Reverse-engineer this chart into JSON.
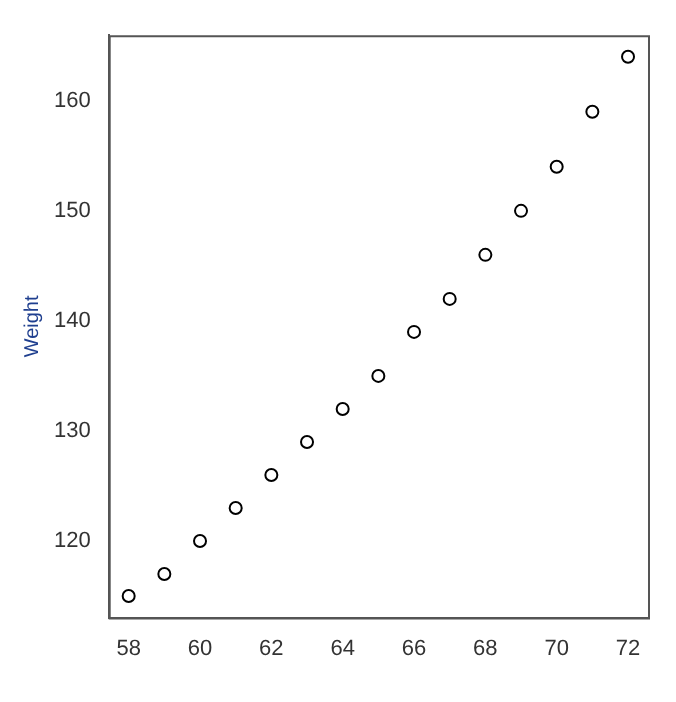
{
  "chart_data": {
    "type": "scatter",
    "ylabel": "Weight",
    "x": [
      58,
      59,
      60,
      61,
      62,
      63,
      64,
      65,
      66,
      67,
      68,
      69,
      70,
      71,
      72
    ],
    "series": [
      {
        "color": "#000000",
        "values": [
          115,
          117,
          120,
          123,
          126,
          129,
          132,
          135,
          139,
          142,
          146,
          150,
          154,
          159,
          164
        ]
      }
    ],
    "xlim": [
      57.44,
      72.56
    ],
    "xticks": [
      58,
      60,
      62,
      64,
      66,
      68,
      70,
      72
    ],
    "ylim": [
      113.04,
      165.96
    ],
    "yticks": [
      120,
      130,
      140,
      150,
      160
    ],
    "marker": "circle",
    "grid": false,
    "legend": false
  }
}
